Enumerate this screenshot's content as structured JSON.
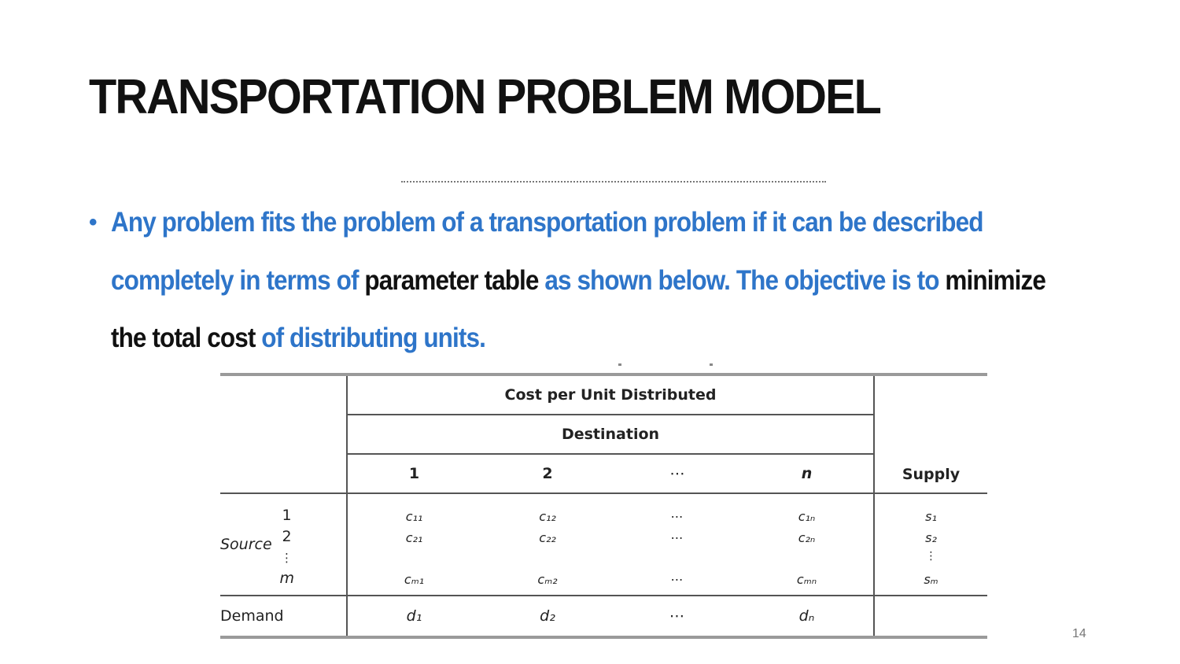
{
  "slide": {
    "title": "TRANSPORTATION PROBLEM MODEL",
    "bullet_parts": [
      {
        "text": "Any problem fits the problem of a transportation problem if it can be described completely in terms of ",
        "highlight": false
      },
      {
        "text": "parameter table",
        "highlight": true
      },
      {
        "text": " as shown below. The objective is to ",
        "highlight": false
      },
      {
        "text": "minimize the total cost",
        "highlight": true
      },
      {
        "text": " of distributing units.",
        "highlight": false
      }
    ],
    "page_number": "14"
  },
  "table": {
    "header_cost": "Cost per Unit Distributed",
    "header_destination": "Destination",
    "columns": [
      "1",
      "2",
      "⋯",
      "n"
    ],
    "supply_header": "Supply",
    "source_label": "Source",
    "source_indices": [
      "1",
      "2",
      "⋮"
    ],
    "source_last": "m",
    "rows": {
      "r1": [
        "c₁₁",
        "c₁₂",
        "⋯",
        "c₁ₙ"
      ],
      "r2": [
        "c₂₁",
        "c₂₂",
        "⋯",
        "c₂ₙ"
      ],
      "rm": [
        "cₘ₁",
        "cₘ₂",
        "⋯",
        "cₘₙ"
      ]
    },
    "supply": {
      "r1": "s₁",
      "r2": "s₂",
      "vdots": "⋮",
      "rm": "sₘ"
    },
    "demand_label": "Demand",
    "demand": [
      "d₁",
      "d₂",
      "⋯",
      "dₙ"
    ]
  },
  "colors": {
    "accent": "#2e75c9",
    "text": "#111111",
    "rule": "#9a9a9a"
  }
}
